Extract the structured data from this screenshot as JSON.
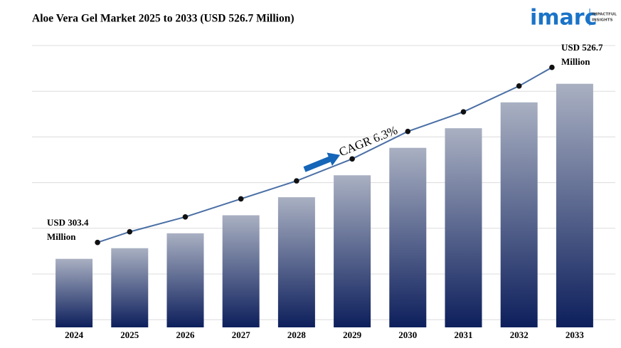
{
  "chart_data": {
    "type": "bar",
    "title": "Aloe Vera Gel Market 2025 to 2033 (USD 526.7 Million)",
    "categories": [
      "2024",
      "2025",
      "2026",
      "2027",
      "2028",
      "2029",
      "2030",
      "2031",
      "2032",
      "2033"
    ],
    "values": [
      303.4,
      317,
      336,
      359,
      382,
      410,
      445,
      470,
      503,
      526.7
    ],
    "color": "#0d1f5c",
    "line_color": "#4a6fa5",
    "ylim": [
      216,
      580
    ],
    "grid": true,
    "annotations": [
      "USD 303.4 Million",
      "USD 526.7 Million",
      "CAGR 6.3%"
    ]
  },
  "logo": {
    "name": "imarc",
    "tagline": [
      "IMPACTFUL",
      "INSIGHTS"
    ]
  }
}
